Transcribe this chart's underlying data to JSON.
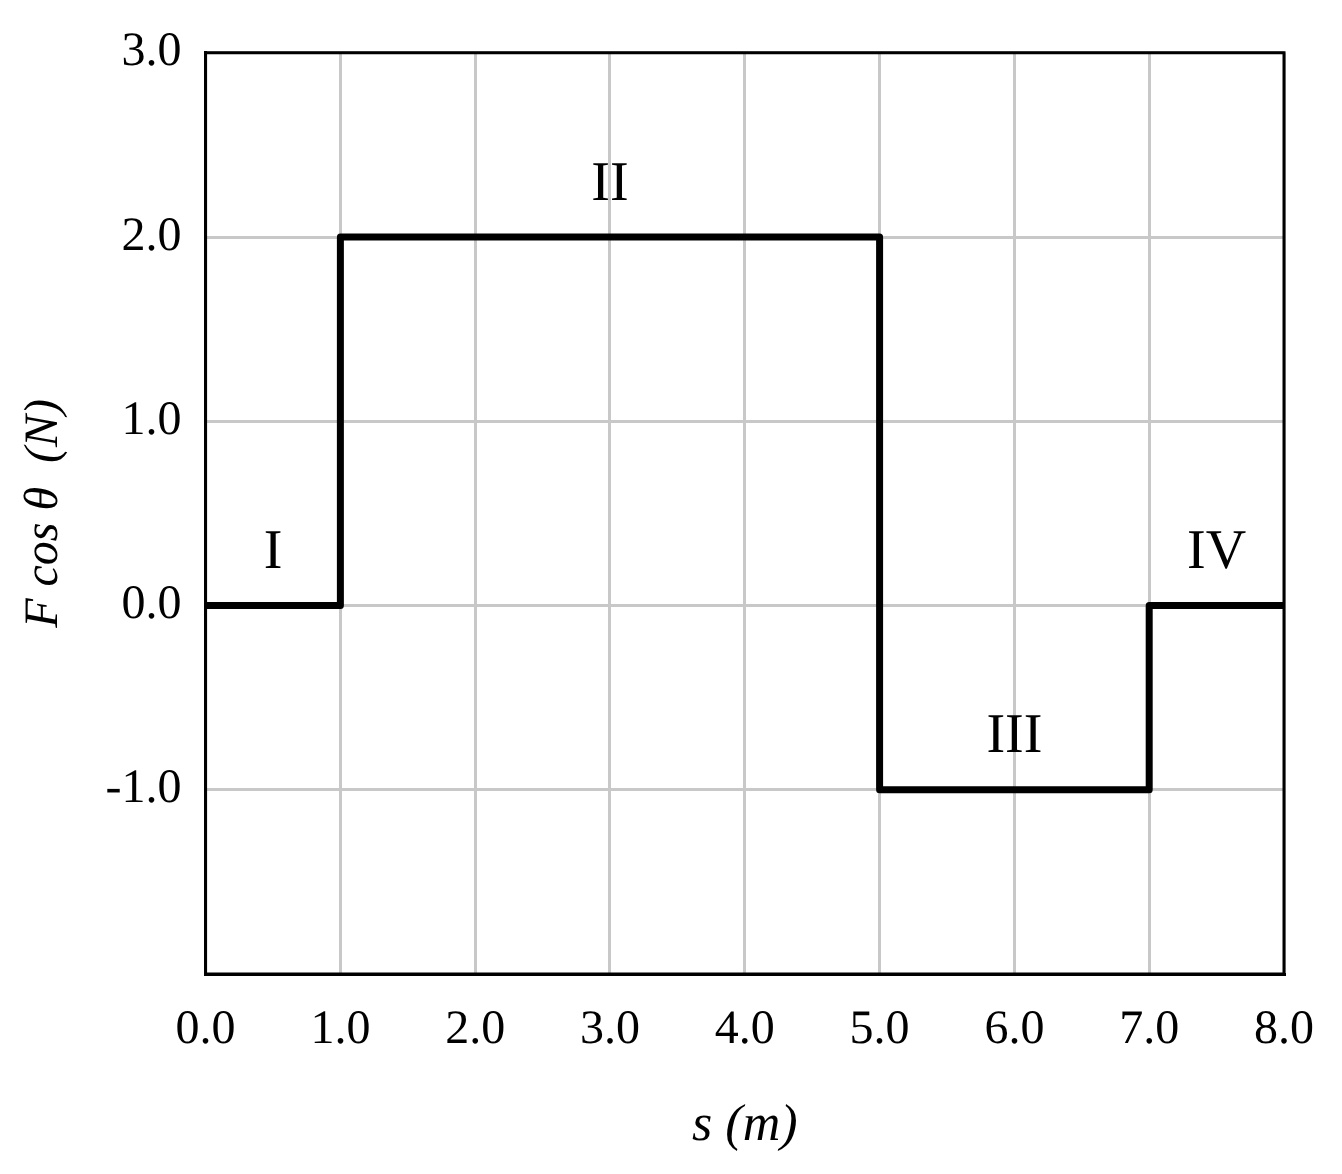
{
  "chart_data": {
    "type": "step",
    "xlabel": "s (m)",
    "ylabel": "F cos θ  (N)",
    "x": [
      0,
      1,
      5,
      7,
      8
    ],
    "series": [
      {
        "color": "#000000",
        "values": [
          0,
          2,
          -1,
          0,
          0
        ]
      }
    ],
    "xlim": [
      0,
      8
    ],
    "xticks": [
      {
        "value": 0,
        "label": "0.0"
      },
      {
        "value": 1,
        "label": "1.0"
      },
      {
        "value": 2,
        "label": "2.0"
      },
      {
        "value": 3,
        "label": "3.0"
      },
      {
        "value": 4,
        "label": "4.0"
      },
      {
        "value": 5,
        "label": "5.0"
      },
      {
        "value": 6,
        "label": "6.0"
      },
      {
        "value": 7,
        "label": "7.0"
      },
      {
        "value": 8,
        "label": "8.0"
      }
    ],
    "ylim": [
      -2,
      3
    ],
    "yticks": [
      {
        "value": -2,
        "label": null
      },
      {
        "value": -1,
        "label": "-1.0"
      },
      {
        "value": 0,
        "label": "0.0"
      },
      {
        "value": 1,
        "label": "1.0"
      },
      {
        "value": 2,
        "label": "2.0"
      },
      {
        "value": 3,
        "label": "3.0"
      }
    ],
    "grid": true,
    "marker": "none",
    "annotations": [
      "I",
      "II",
      "III",
      "IV"
    ]
  }
}
